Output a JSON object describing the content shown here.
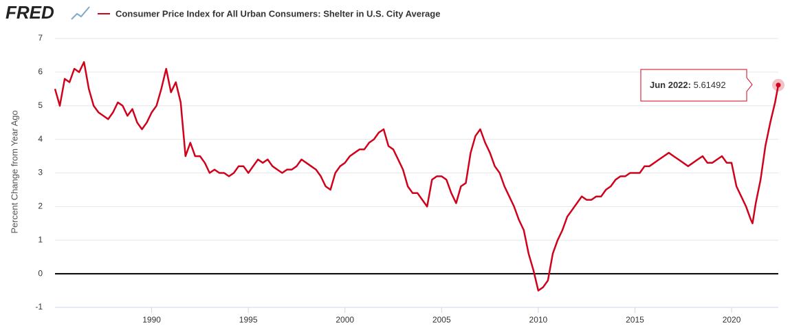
{
  "chart_data": {
    "type": "line",
    "logo": "FRED",
    "y_label": "Percent Change from Year Ago",
    "xlim": [
      1985,
      2022.417
    ],
    "ylim": [
      -1,
      7
    ],
    "xticks": [
      1990,
      1995,
      2000,
      2005,
      2010,
      2015,
      2020
    ],
    "yticks": [
      -1,
      0,
      1,
      2,
      3,
      4,
      5,
      6,
      7
    ],
    "grid": true,
    "tooltip": {
      "label": "Jun 2022:"
    },
    "series": [
      {
        "name": "Consumer Price Index for All Urban Consumers: Shelter in U.S. City Average",
        "color": "#d0021b",
        "x": [
          1985,
          1985.25,
          1985.5,
          1985.75,
          1986,
          1986.25,
          1986.5,
          1986.75,
          1987,
          1987.25,
          1987.5,
          1987.75,
          1988,
          1988.25,
          1988.5,
          1988.75,
          1989,
          1989.25,
          1989.5,
          1989.75,
          1990,
          1990.25,
          1990.5,
          1990.75,
          1991,
          1991.25,
          1991.5,
          1991.75,
          1992,
          1992.25,
          1992.5,
          1992.75,
          1993,
          1993.25,
          1993.5,
          1993.75,
          1994,
          1994.25,
          1994.5,
          1994.75,
          1995,
          1995.25,
          1995.5,
          1995.75,
          1996,
          1996.25,
          1996.5,
          1996.75,
          1997,
          1997.25,
          1997.5,
          1997.75,
          1998,
          1998.25,
          1998.5,
          1998.75,
          1999,
          1999.25,
          1999.5,
          1999.75,
          2000,
          2000.25,
          2000.5,
          2000.75,
          2001,
          2001.25,
          2001.5,
          2001.75,
          2002,
          2002.25,
          2002.5,
          2002.75,
          2003,
          2003.25,
          2003.5,
          2003.75,
          2004,
          2004.25,
          2004.5,
          2004.75,
          2005,
          2005.25,
          2005.5,
          2005.75,
          2006,
          2006.25,
          2006.5,
          2006.75,
          2007,
          2007.25,
          2007.5,
          2007.75,
          2008,
          2008.25,
          2008.5,
          2008.75,
          2009,
          2009.25,
          2009.5,
          2009.75,
          2010,
          2010.25,
          2010.5,
          2010.75,
          2011,
          2011.25,
          2011.5,
          2011.75,
          2012,
          2012.25,
          2012.5,
          2012.75,
          2013,
          2013.25,
          2013.5,
          2013.75,
          2014,
          2014.25,
          2014.5,
          2014.75,
          2015,
          2015.25,
          2015.5,
          2015.75,
          2016,
          2016.25,
          2016.5,
          2016.75,
          2017,
          2017.25,
          2017.5,
          2017.75,
          2018,
          2018.25,
          2018.5,
          2018.75,
          2019,
          2019.25,
          2019.5,
          2019.75,
          2020,
          2020.25,
          2020.5,
          2020.75,
          2021,
          2021.083,
          2021.25,
          2021.5,
          2021.75,
          2022,
          2022.25,
          2022.417
        ],
        "values": [
          5.5,
          5.0,
          5.8,
          5.7,
          6.1,
          6.0,
          6.3,
          5.5,
          5.0,
          4.8,
          4.7,
          4.6,
          4.8,
          5.1,
          5.0,
          4.7,
          4.9,
          4.5,
          4.3,
          4.5,
          4.8,
          5.0,
          5.5,
          6.1,
          5.4,
          5.7,
          5.1,
          3.5,
          3.9,
          3.5,
          3.5,
          3.3,
          3.0,
          3.1,
          3.0,
          3.0,
          2.9,
          3.0,
          3.2,
          3.2,
          3.0,
          3.2,
          3.4,
          3.3,
          3.4,
          3.2,
          3.1,
          3.0,
          3.1,
          3.1,
          3.2,
          3.4,
          3.3,
          3.2,
          3.1,
          2.9,
          2.6,
          2.5,
          3.0,
          3.2,
          3.3,
          3.5,
          3.6,
          3.7,
          3.7,
          3.9,
          4.0,
          4.2,
          4.3,
          3.8,
          3.7,
          3.4,
          3.1,
          2.6,
          2.4,
          2.4,
          2.2,
          2.0,
          2.8,
          2.9,
          2.9,
          2.8,
          2.4,
          2.1,
          2.6,
          2.7,
          3.6,
          4.1,
          4.3,
          3.9,
          3.6,
          3.2,
          3.0,
          2.6,
          2.3,
          2.0,
          1.6,
          1.3,
          0.6,
          0.1,
          -0.5,
          -0.4,
          -0.2,
          0.6,
          1.0,
          1.3,
          1.7,
          1.9,
          2.1,
          2.3,
          2.2,
          2.2,
          2.3,
          2.3,
          2.5,
          2.6,
          2.8,
          2.9,
          2.9,
          3.0,
          3.0,
          3.0,
          3.2,
          3.2,
          3.3,
          3.4,
          3.5,
          3.6,
          3.5,
          3.4,
          3.3,
          3.2,
          3.3,
          3.4,
          3.5,
          3.3,
          3.3,
          3.4,
          3.5,
          3.3,
          3.3,
          2.6,
          2.3,
          2.0,
          1.6,
          1.5,
          2.1,
          2.8,
          3.8,
          4.5,
          5.1,
          5.61492
        ]
      }
    ]
  }
}
